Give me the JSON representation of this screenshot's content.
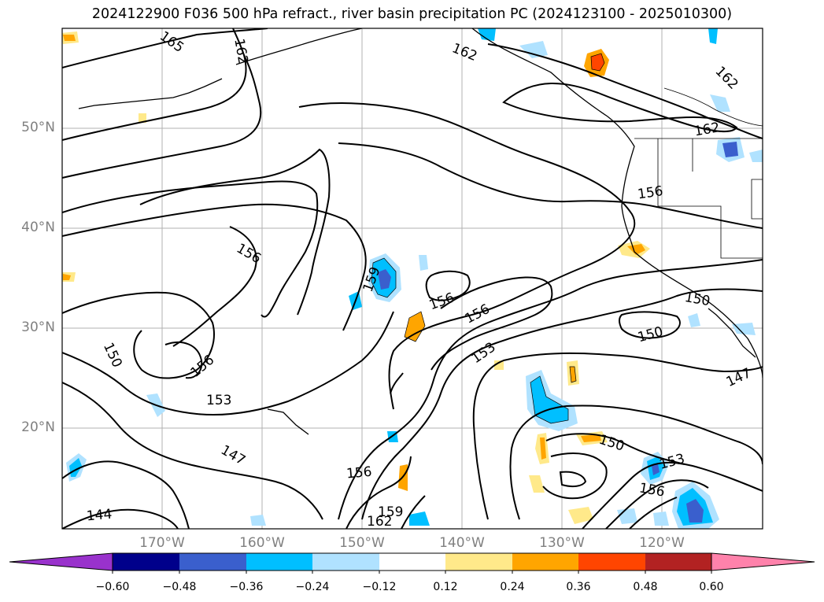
{
  "title": "2024122900 F036 500 hPa refract., river basin precipitation PC (2024123100 - 2025010300)",
  "lat_labels": [
    "50°N",
    "40°N",
    "30°N",
    "20°N"
  ],
  "lon_labels": [
    "170°W",
    "160°W",
    "150°W",
    "140°W",
    "130°W",
    "120°W"
  ],
  "contour_labels": [
    "165",
    "162",
    "162",
    "162",
    "162",
    "156",
    "156",
    "159",
    "156",
    "156",
    "153",
    "156",
    "153",
    "150",
    "147",
    "150",
    "150",
    "147",
    "156",
    "159",
    "162",
    "150",
    "153",
    "156",
    "144"
  ],
  "colorbar": {
    "tick_labels": [
      "−0.60",
      "−0.48",
      "−0.36",
      "−0.24",
      "−0.12",
      "0.12",
      "0.24",
      "0.36",
      "0.48",
      "0.60"
    ],
    "colors": [
      "#9932cc",
      "#00008b",
      "#3a5fcd",
      "#00bfff",
      "#b0e2ff",
      "#ffffff",
      "#ffe98a",
      "#ffa500",
      "#ff4500",
      "#b22222",
      "#ff82ab"
    ]
  }
}
